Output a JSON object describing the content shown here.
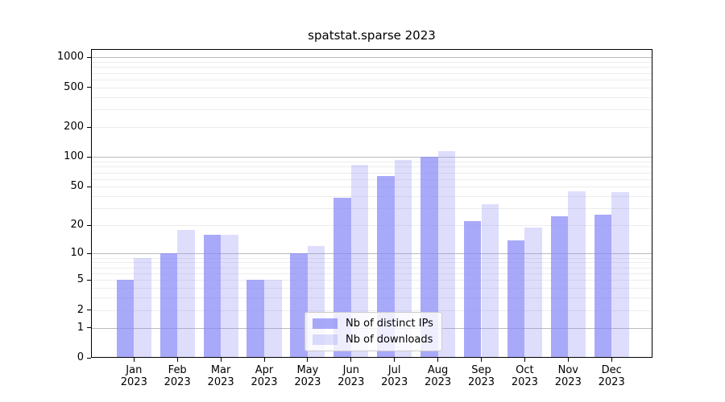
{
  "chart_data": {
    "type": "bar",
    "title": "spatstat.sparse 2023",
    "categories": [
      "Jan",
      "Feb",
      "Mar",
      "Apr",
      "May",
      "Jun",
      "Jul",
      "Aug",
      "Sep",
      "Oct",
      "Nov",
      "Dec"
    ],
    "year_label": "2023",
    "series": [
      {
        "name": "Nb of distinct IPs",
        "color": "#a9a9f6",
        "color_rgba": "rgba(136,136,246,0.72)",
        "values": [
          5,
          10,
          16,
          5,
          10,
          39,
          64,
          100,
          22,
          14,
          25,
          26
        ]
      },
      {
        "name": "Nb of downloads",
        "color": "#dedef9",
        "color_rgba": "rgba(136,136,246,0.28)",
        "values": [
          9,
          18,
          16,
          5,
          12,
          83,
          94,
          116,
          33,
          19,
          45,
          44
        ]
      }
    ],
    "y_ticks": [
      1000,
      500,
      200,
      100,
      50,
      20,
      10,
      5,
      2,
      1,
      0
    ],
    "scale": "log1p",
    "ylim": [
      0,
      1214
    ],
    "grid": true,
    "legend_position": "lower center",
    "colors": {
      "major_grid": "#bbbbbb",
      "minor_grid": "#ececec",
      "axis": "#000000",
      "background": "#ffffff"
    }
  }
}
